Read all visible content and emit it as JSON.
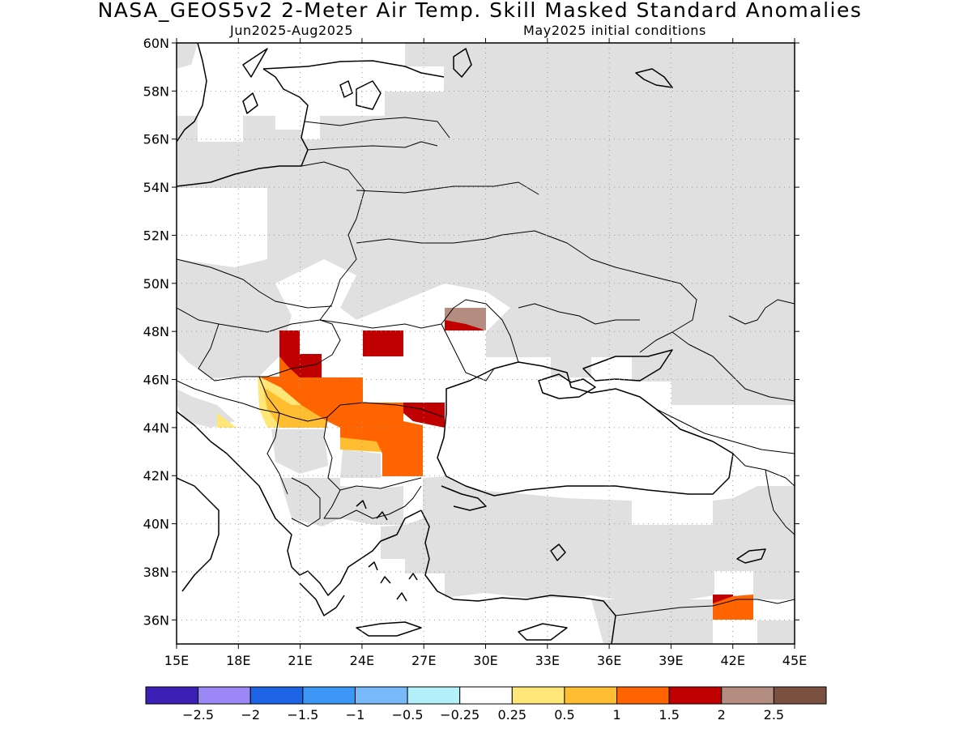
{
  "header": {
    "title": "NASA_GEOS5v2 2-Meter Air Temp. Skill Masked Standard Anomalies",
    "period": "Jun2025-Aug2025",
    "initial_conditions": "May2025 initial conditions"
  },
  "map": {
    "lon_range": [
      15,
      45
    ],
    "lat_range": [
      35,
      60
    ],
    "lat_labels": [
      "60N",
      "58N",
      "56N",
      "54N",
      "52N",
      "50N",
      "48N",
      "46N",
      "44N",
      "42N",
      "40N",
      "38N",
      "36N"
    ],
    "lon_labels": [
      "15E",
      "18E",
      "21E",
      "24E",
      "27E",
      "30E",
      "33E",
      "36E",
      "39E",
      "42E",
      "45E"
    ],
    "masked_color": "#e0e0e0",
    "grid_style": "dotted"
  },
  "colorbar": {
    "colors": [
      "#3c1fb4",
      "#9b87f5",
      "#1e64e6",
      "#3c96f5",
      "#78b9fa",
      "#b4f0fa",
      "#ffffff",
      "#ffe678",
      "#ffbe32",
      "#ff6400",
      "#c00000",
      "#b48c80",
      "#7a5040"
    ],
    "labels": [
      "-2.5",
      "-2",
      "-1.5",
      "-1",
      "-0.5",
      "-0.25",
      "0.25",
      "0.5",
      "1",
      "1.5",
      "2",
      "2.5"
    ]
  }
}
